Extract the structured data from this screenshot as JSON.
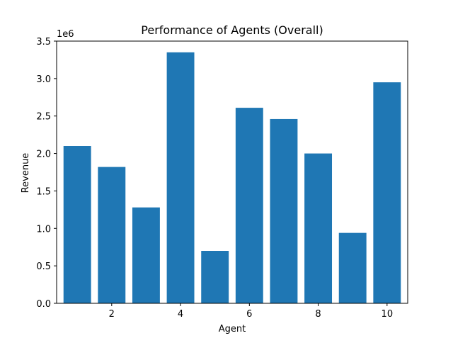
{
  "chart_data": {
    "type": "bar",
    "title": "Performance of Agents (Overall)",
    "xlabel": "Agent",
    "ylabel": "Revenue",
    "y_offset_label": "1e6",
    "x": [
      1,
      2,
      3,
      4,
      5,
      6,
      7,
      8,
      9,
      10
    ],
    "values": [
      2100000,
      1820000,
      1280000,
      3350000,
      700000,
      2610000,
      2460000,
      2000000,
      940000,
      2950000
    ],
    "xlim": [
      0.4,
      10.6
    ],
    "ylim": [
      0,
      3500000
    ],
    "x_ticks": [
      2,
      4,
      6,
      8,
      10
    ],
    "x_tick_labels": [
      "2",
      "4",
      "6",
      "8",
      "10"
    ],
    "y_ticks": [
      0,
      500000,
      1000000,
      1500000,
      2000000,
      2500000,
      3000000,
      3500000
    ],
    "y_tick_labels": [
      "0.0",
      "0.5",
      "1.0",
      "1.5",
      "2.0",
      "2.5",
      "3.0",
      "3.5"
    ],
    "bar_width": 0.8,
    "bar_color": "#1f77b4",
    "grid": false,
    "legend": "none"
  }
}
